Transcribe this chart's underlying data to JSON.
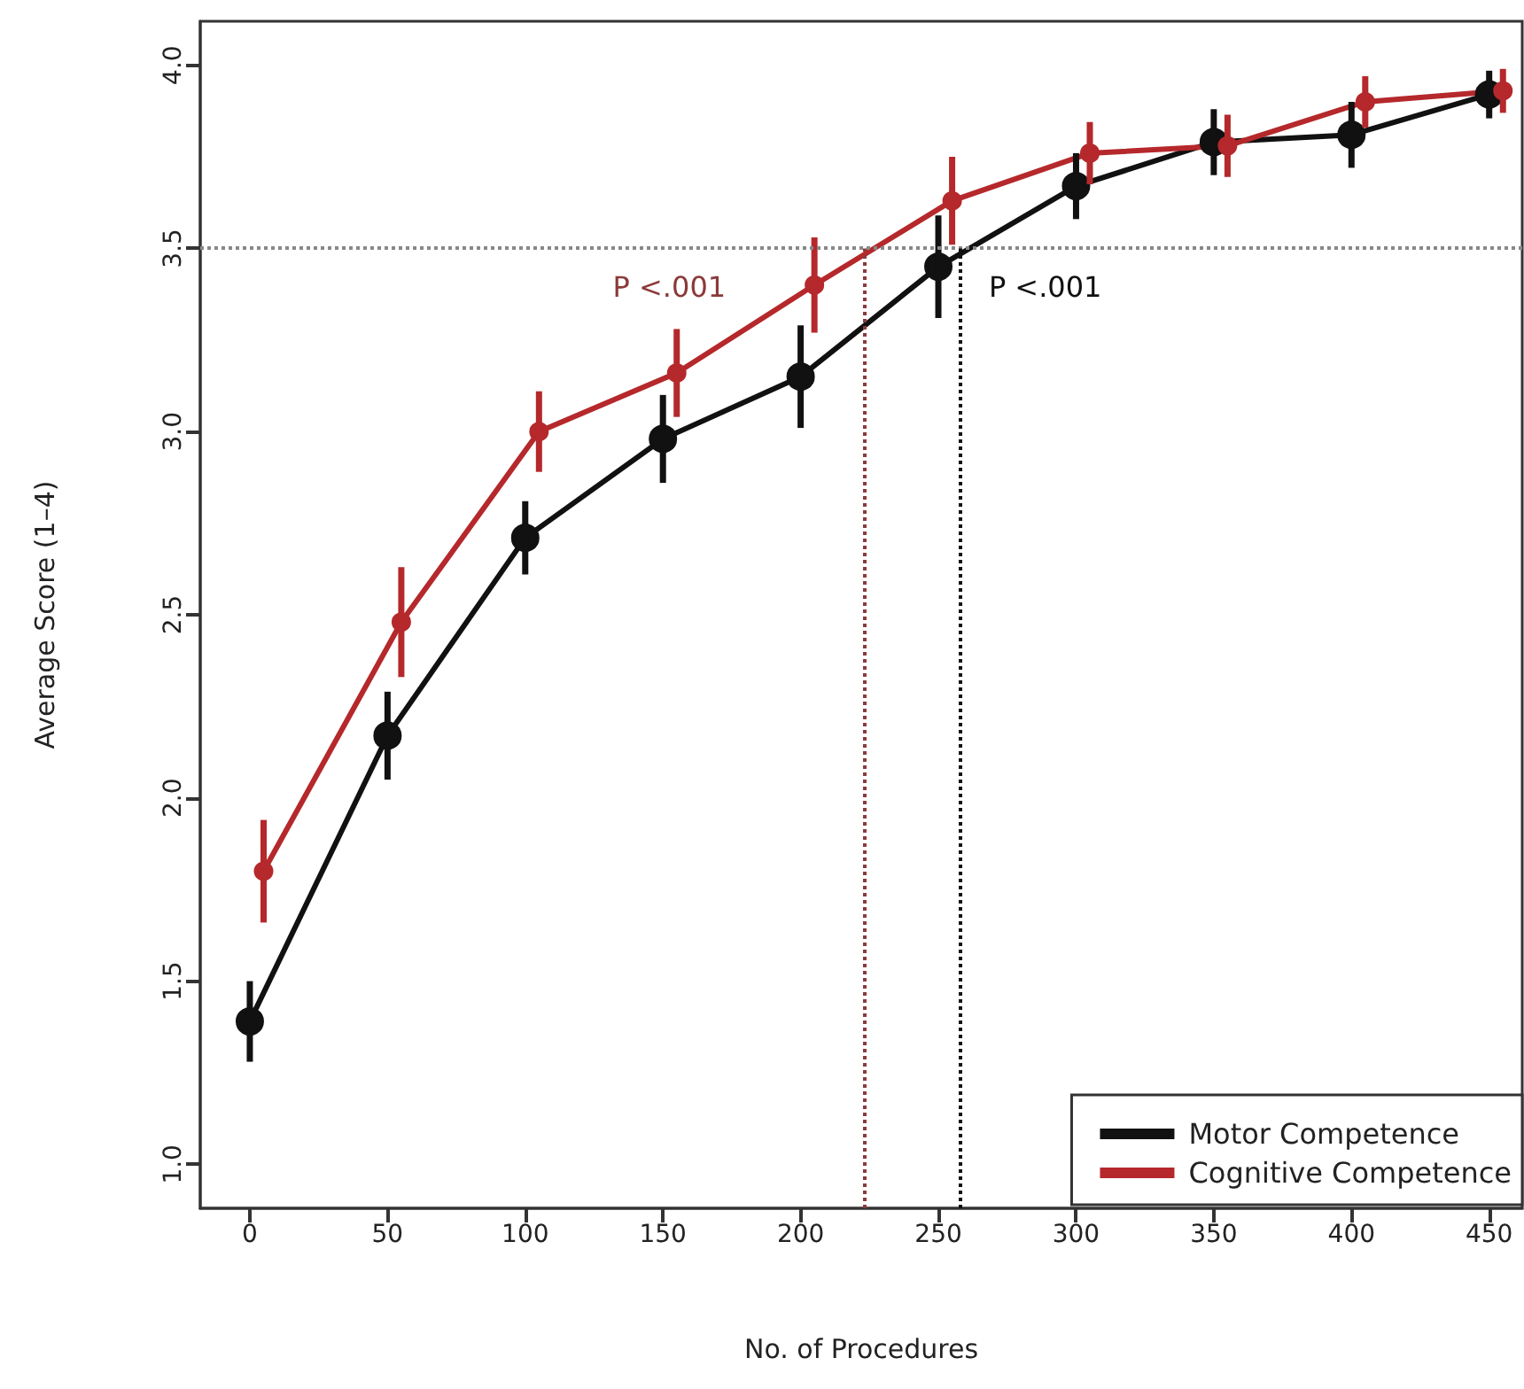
{
  "chart_data": {
    "type": "line",
    "xlabel": "No. of Procedures",
    "ylabel": "Average Score (1–4)",
    "xlim": [
      -18,
      462
    ],
    "xticks": [
      0,
      50,
      100,
      150,
      200,
      250,
      300,
      350,
      400,
      450
    ],
    "ylim": [
      0.88,
      4.12
    ],
    "yticks": [
      {
        "value": 1,
        "label": "1.0"
      },
      {
        "value": 1.5,
        "label": "1.5"
      },
      {
        "value": 2,
        "label": "2.0"
      },
      {
        "value": 2.5,
        "label": "2.5"
      },
      {
        "value": 3,
        "label": "3.0"
      },
      {
        "value": 3.5,
        "label": "3.5"
      },
      {
        "value": 4,
        "label": "4.0"
      }
    ],
    "series": [
      {
        "name": "Motor Competence",
        "color": "#111111",
        "x": [
          0,
          50,
          100,
          150,
          200,
          250,
          300,
          350,
          400,
          450
        ],
        "values": [
          1.39,
          2.17,
          2.71,
          2.98,
          3.15,
          3.45,
          3.67,
          3.79,
          3.81,
          3.92
        ],
        "errors": [
          0.11,
          0.12,
          0.1,
          0.12,
          0.14,
          0.14,
          0.09,
          0.09,
          0.09,
          0.065
        ]
      },
      {
        "name": "Cognitive Competence",
        "color": "#b5282b",
        "x": [
          5,
          55,
          105,
          155,
          205,
          255,
          305,
          355,
          405,
          455
        ],
        "values": [
          1.8,
          2.48,
          3.0,
          3.16,
          3.4,
          3.63,
          3.76,
          3.78,
          3.9,
          3.93
        ],
        "errors": [
          0.14,
          0.15,
          0.11,
          0.12,
          0.13,
          0.12,
          0.085,
          0.085,
          0.07,
          0.06
        ]
      }
    ],
    "ref_lines": [
      {
        "axis": "y",
        "value": 3.5,
        "color": "#888888",
        "line_style": "dotted"
      },
      {
        "axis": "x",
        "value": 223,
        "color": "#8b3a3a",
        "line_style": "dotted"
      },
      {
        "axis": "x",
        "value": 258,
        "color": "#111111",
        "line_style": "dotted"
      }
    ],
    "annotations": [
      "P <.001",
      "P <.001"
    ],
    "marker": "circle",
    "line_style": "solid",
    "grid": false,
    "legend": "bottom right"
  }
}
